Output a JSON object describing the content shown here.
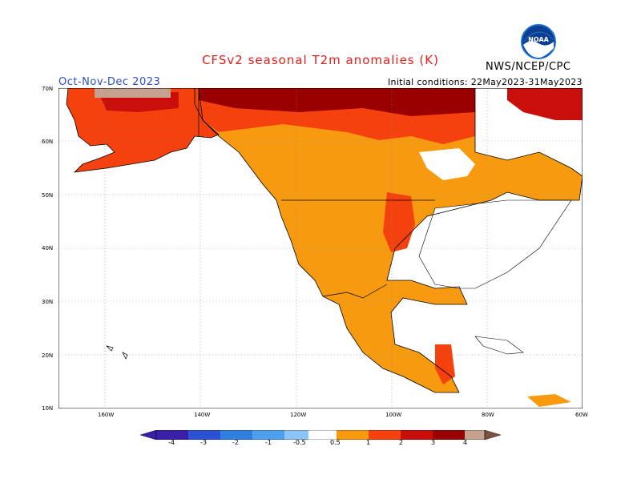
{
  "title": "CFSv2 seasonal T2m anomalies (K)",
  "agency": "NWS/NCEP/CPC",
  "logo_text": "NOAA",
  "period": "Oct-Nov-Dec 2023",
  "initial_conditions": "Initial conditions: 22May2023-31May2023",
  "lat_labels": [
    "70N",
    "60N",
    "50N",
    "40N",
    "30N",
    "20N",
    "10N"
  ],
  "lon_labels": [
    "160W",
    "140W",
    "120W",
    "100W",
    "80W",
    "60W"
  ],
  "colorbar": {
    "labels": [
      "-4",
      "-3",
      "-2",
      "-1",
      "-0.5",
      "0.5",
      "1",
      "2",
      "3",
      "4"
    ],
    "colors": [
      "#3a1fa8",
      "#2a52d2",
      "#2f7fe0",
      "#4ea0ee",
      "#8cc4f8",
      "#ffffff",
      "#f79a10",
      "#f5410e",
      "#c80f0b",
      "#9a0000",
      "#c8a090",
      "#7d5040"
    ]
  }
}
